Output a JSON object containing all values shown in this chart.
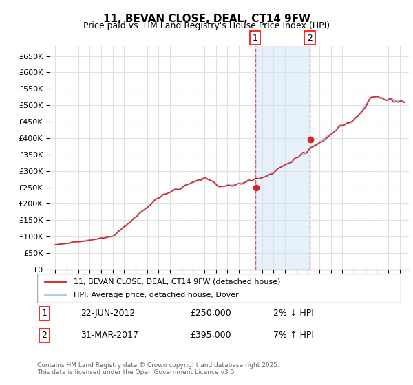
{
  "title": "11, BEVAN CLOSE, DEAL, CT14 9FW",
  "subtitle": "Price paid vs. HM Land Registry's House Price Index (HPI)",
  "legend_line1": "11, BEVAN CLOSE, DEAL, CT14 9FW (detached house)",
  "legend_line2": "HPI: Average price, detached house, Dover",
  "annotation1_label": "1",
  "annotation1_date": "22-JUN-2012",
  "annotation1_price": 250000,
  "annotation1_hpi": "2% ↓ HPI",
  "annotation2_label": "2",
  "annotation2_date": "31-MAR-2017",
  "annotation2_price": 395000,
  "annotation2_hpi": "7% ↑ HPI",
  "footer": "Contains HM Land Registry data © Crown copyright and database right 2025.\nThis data is licensed under the Open Government Licence v3.0.",
  "hpi_color": "#aec6e8",
  "price_color": "#d62728",
  "marker_color": "#d62728",
  "annotation_vline_color": "#d45f5f",
  "shade_color": "#d0e4f7",
  "ylim": [
    0,
    680000
  ],
  "yticks": [
    0,
    50000,
    100000,
    150000,
    200000,
    250000,
    300000,
    350000,
    400000,
    450000,
    500000,
    550000,
    600000,
    650000
  ],
  "start_year": 1995,
  "end_year": 2025
}
